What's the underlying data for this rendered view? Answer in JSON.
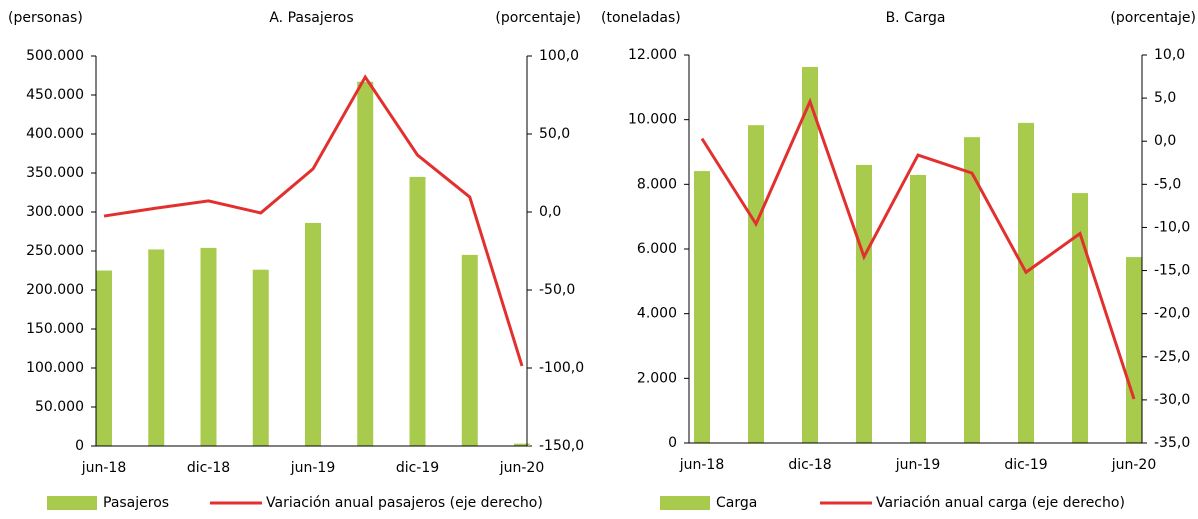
{
  "chart_data": [
    {
      "type": "bar",
      "title": "A. Pasajeros",
      "y_label": "(personas)",
      "y2_label": "(porcentaje)",
      "categories": [
        "jun-18",
        null,
        "dic-18",
        null,
        "jun-19",
        null,
        "dic-19",
        null,
        "jun-20"
      ],
      "series": [
        {
          "name": "Pasajeros",
          "type": "bar",
          "color": "#a8cb4e",
          "values": [
            225000,
            252000,
            254000,
            226000,
            286000,
            467000,
            345000,
            245000,
            3000
          ]
        },
        {
          "name": "Variación anual pasajeros (eje derecho)",
          "type": "line",
          "axis": "y2",
          "color": "#e2302f",
          "values": [
            -2.6,
            2.5,
            7.1,
            -0.6,
            27.6,
            86.5,
            36.5,
            9.6,
            -98.7
          ]
        }
      ],
      "ylim": [
        0,
        500000
      ],
      "yticks": [
        {
          "value": 0,
          "label": "0"
        },
        {
          "value": 50000,
          "label": "50.000"
        },
        {
          "value": 100000,
          "label": "100.000"
        },
        {
          "value": 150000,
          "label": "150.000"
        },
        {
          "value": 200000,
          "label": "200.000"
        },
        {
          "value": 250000,
          "label": "250.000"
        },
        {
          "value": 300000,
          "label": "300.000"
        },
        {
          "value": 350000,
          "label": "350.000"
        },
        {
          "value": 400000,
          "label": "400.000"
        },
        {
          "value": 450000,
          "label": "450.000"
        },
        {
          "value": 500000,
          "label": "500.000"
        }
      ],
      "y2lim": [
        -150,
        100
      ],
      "y2ticks": [
        {
          "value": -150,
          "label": "-150,0"
        },
        {
          "value": -100,
          "label": "-100,0"
        },
        {
          "value": -50,
          "label": "-50,0"
        },
        {
          "value": 0,
          "label": "0,0"
        },
        {
          "value": 50,
          "label": "50,0"
        },
        {
          "value": 100,
          "label": "100,0"
        }
      ]
    },
    {
      "type": "bar",
      "title": "B. Carga",
      "y_label": "(toneladas)",
      "y2_label": "(porcentaje)",
      "categories": [
        "jun-18",
        null,
        "dic-18",
        null,
        "jun-19",
        null,
        "dic-19",
        null,
        "jun-20"
      ],
      "series": [
        {
          "name": "Carga",
          "type": "bar",
          "color": "#a8cb4e",
          "values": [
            8410,
            9830,
            11630,
            8600,
            8290,
            9460,
            9900,
            7730,
            5750
          ]
        },
        {
          "name": "Variación anual carga (eje derecho)",
          "type": "line",
          "axis": "y2",
          "color": "#e2302f",
          "values": [
            0.3,
            -9.6,
            4.6,
            -13.4,
            -1.6,
            -3.7,
            -15.2,
            -10.7,
            -29.9
          ]
        }
      ],
      "ylim": [
        0,
        12000
      ],
      "yticks": [
        {
          "value": 0,
          "label": "0"
        },
        {
          "value": 2000,
          "label": "2.000"
        },
        {
          "value": 4000,
          "label": "4.000"
        },
        {
          "value": 6000,
          "label": "6.000"
        },
        {
          "value": 8000,
          "label": "8.000"
        },
        {
          "value": 10000,
          "label": "10.000"
        },
        {
          "value": 12000,
          "label": "12.000"
        }
      ],
      "y2lim": [
        -35,
        10
      ],
      "y2ticks": [
        {
          "value": -35,
          "label": "-35,0"
        },
        {
          "value": -30,
          "label": "-30,0"
        },
        {
          "value": -25,
          "label": "-25,0"
        },
        {
          "value": -20,
          "label": "-20,0"
        },
        {
          "value": -15,
          "label": "-15,0"
        },
        {
          "value": -10,
          "label": "-10,0"
        },
        {
          "value": -5,
          "label": "-5,0"
        },
        {
          "value": 0,
          "label": "0,0"
        },
        {
          "value": 5,
          "label": "5,0"
        },
        {
          "value": 10,
          "label": "10,0"
        }
      ]
    }
  ]
}
